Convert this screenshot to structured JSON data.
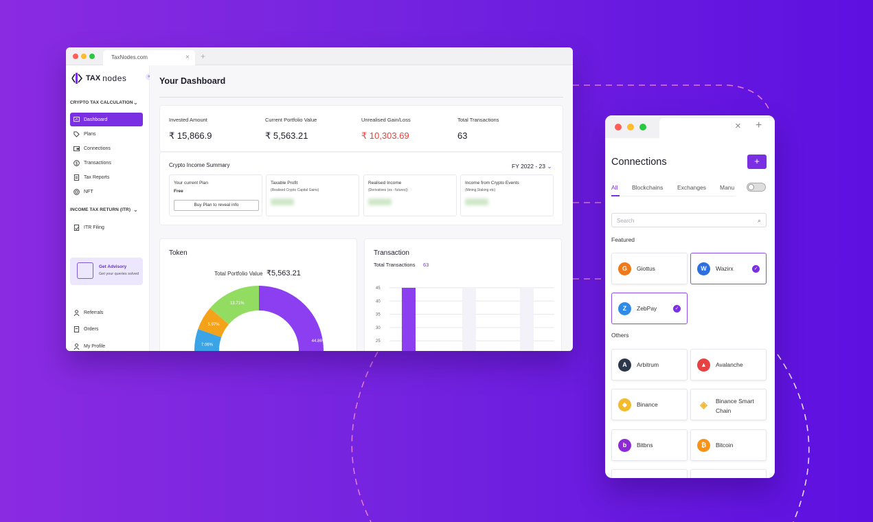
{
  "browser": {
    "tab_title": "TaxNodes.com",
    "tab_close": "×",
    "new_tab": "+"
  },
  "colors": {
    "accent": "#7b2fe3",
    "loss": "#e8423f",
    "bg_gradient_start": "#8a2be2",
    "bg_gradient_end": "#5d10e0"
  },
  "sidebar": {
    "logo_bold": "TAX",
    "logo_light": "nodes",
    "collapse_icon": "«",
    "section1": "CRYPTO TAX CALCULATION",
    "items": [
      {
        "label": "Dashboard",
        "icon": "dashboard-icon",
        "active": true
      },
      {
        "label": "Plans",
        "icon": "tag-icon"
      },
      {
        "label": "Connections",
        "icon": "wallet-icon"
      },
      {
        "label": "Transactions",
        "icon": "dollar-icon"
      },
      {
        "label": "Tax Reports",
        "icon": "report-icon"
      },
      {
        "label": "NFT",
        "icon": "nft-icon"
      }
    ],
    "section2": "INCOME TAX RETURN (ITR)",
    "itr_items": [
      {
        "label": "ITR Filing",
        "icon": "filing-icon"
      }
    ],
    "advisory": {
      "title": "Get Advisory",
      "subtitle": "Get your queries solved"
    },
    "bottom_items": [
      {
        "label": "Referrals",
        "icon": "user-icon"
      },
      {
        "label": "Orders",
        "icon": "orders-icon"
      },
      {
        "label": "My Profile",
        "icon": "user-icon"
      }
    ]
  },
  "dashboard": {
    "title": "Your Dashboard",
    "stats": [
      {
        "label": "Invested Amount",
        "value": "₹ 15,866.9"
      },
      {
        "label": "Current Portfolio Value",
        "value": "₹ 5,563.21"
      },
      {
        "label": "Unrealised Gain/Loss",
        "value": "₹ 10,303.69"
      },
      {
        "label": "Total Transactions",
        "value": "63"
      }
    ],
    "income": {
      "title": "Crypto Income Summary",
      "fy": "FY 2022 - 23",
      "plan_label": "Your current Plan",
      "plan_value": "Free",
      "plan_button": "Buy Plan to reveal info",
      "boxes": [
        {
          "title": "Taxable Profit",
          "sub": "(Realised Crypto Capital Gains)"
        },
        {
          "title": "Realised Income",
          "sub": "(Derivatives (ex - futures))"
        },
        {
          "title": "Income from Crypto Events",
          "sub": "(Mining,Staking etc)"
        }
      ]
    },
    "token": {
      "title": "Token",
      "total_label": "Total Portfolio Value",
      "total_value": "₹5,563.21"
    },
    "transaction": {
      "title": "Transaction",
      "total_label": "Total Transactions",
      "total_value": "63"
    }
  },
  "chart_data": [
    {
      "type": "pie",
      "title": "Total Portfolio Value ₹5,563.21",
      "slices": [
        {
          "label": "44.86%",
          "value": 44.86,
          "color": "#8c3ff0"
        },
        {
          "label": "7.06%",
          "value": 7.06,
          "color": "#3aa4e6"
        },
        {
          "label": "5.97%",
          "value": 5.97,
          "color": "#f4a21a"
        },
        {
          "label": "13.71%",
          "value": 13.71,
          "color": "#93dc62"
        }
      ]
    },
    {
      "type": "bar",
      "title": "Total Transactions 63",
      "yticks": [
        45,
        40,
        35,
        30,
        25,
        20
      ],
      "ylim": [
        0,
        45
      ],
      "values": [
        45
      ]
    }
  ],
  "connections": {
    "title": "Connections",
    "add": "+",
    "tabs": [
      "All",
      "Blockchains",
      "Exchanges",
      "Manu"
    ],
    "search_placeholder": "Search",
    "featured_label": "Featured",
    "featured": [
      {
        "name": "Giottus",
        "selected": false,
        "color": "#f07a1a",
        "icon": "giottus-icon"
      },
      {
        "name": "Wazirx",
        "selected": true,
        "color": "#2d6ee0",
        "icon": "wazirx-icon"
      },
      {
        "name": "ZebPay",
        "selected": true,
        "color": "#2f8ae8",
        "icon": "zebpay-icon"
      }
    ],
    "others_label": "Others",
    "others": [
      {
        "name": "Arbitrum",
        "color": "#2d374b",
        "icon": "arbitrum-icon"
      },
      {
        "name": "Avalanche",
        "color": "#e84142",
        "icon": "avalanche-icon"
      },
      {
        "name": "Binance",
        "color": "#f3ba2f",
        "icon": "binance-icon"
      },
      {
        "name": "Binance Smart Chain",
        "color": "#f3ba2f",
        "icon": "bsc-icon"
      },
      {
        "name": "Bitbns",
        "color": "#8c2bd6",
        "icon": "bitbns-icon"
      },
      {
        "name": "Bitcoin",
        "color": "#f7931a",
        "icon": "bitcoin-icon"
      }
    ]
  }
}
